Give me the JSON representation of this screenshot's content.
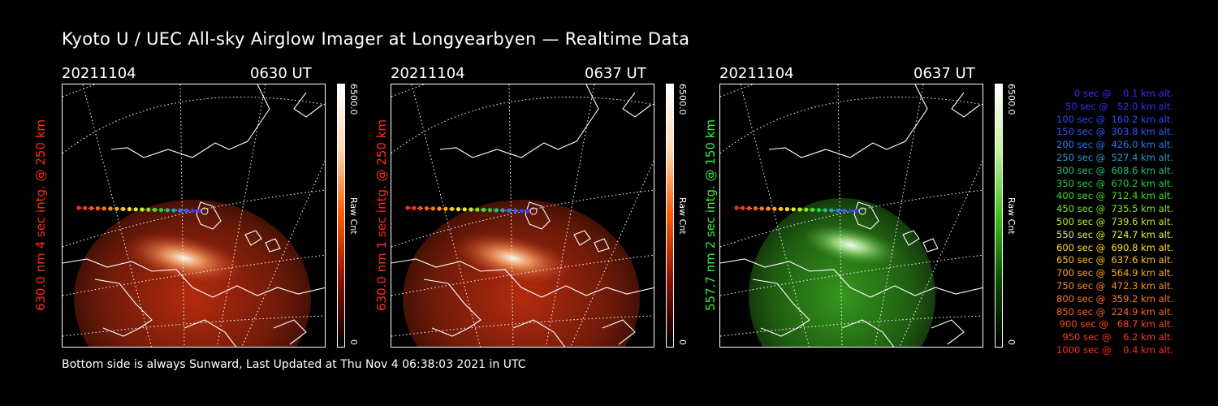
{
  "title": "Kyoto U / UEC All-sky Airglow Imager at Longyearbyen — Realtime Data",
  "footer": "Bottom side is always Sunward, Last Updated at Thu Nov  4 06:38:03 2021 in UTC",
  "colors": {
    "red_label": "#ff2a1a",
    "green_label": "#33ee33",
    "red_glow": "#c83010",
    "green_glow": "#3aa820"
  },
  "panels": [
    {
      "date": "20211104",
      "time": "0630 UT",
      "ylabel": "630.0 nm 4 sec intg. @ 250 km",
      "cbar_max": "6500.0",
      "cbar_unit": "Raw Cnt",
      "cbar_min": "0",
      "color": "red"
    },
    {
      "date": "20211104",
      "time": "0637 UT",
      "ylabel": "630.0 nm 1 sec intg. @ 250 km",
      "cbar_max": "6500.0",
      "cbar_unit": "Raw Cnt",
      "cbar_min": "0",
      "color": "red"
    },
    {
      "date": "20211104",
      "time": "0637 UT",
      "ylabel": "557.7 nm 2 sec intg. @ 150 km",
      "cbar_max": "6500.0",
      "cbar_unit": "Raw Cnt",
      "cbar_min": "0",
      "color": "green"
    }
  ],
  "legend": [
    {
      "text": "   0 sec @    0.1 km alt.",
      "color": "#3a2cff"
    },
    {
      "text": "  50 sec @   52.0 km alt.",
      "color": "#3a2cff"
    },
    {
      "text": " 100 sec @  160.2 km alt.",
      "color": "#2e44ff"
    },
    {
      "text": " 150 sec @  303.8 km alt.",
      "color": "#2a5cff"
    },
    {
      "text": " 200 sec @  426.0 km alt.",
      "color": "#2a78ff"
    },
    {
      "text": " 250 sec @  527.4 km alt.",
      "color": "#2a9ad0"
    },
    {
      "text": " 300 sec @  608.6 km alt.",
      "color": "#22c080"
    },
    {
      "text": " 350 sec @  670.2 km alt.",
      "color": "#22d040"
    },
    {
      "text": " 400 sec @  712.4 km alt.",
      "color": "#40dd20"
    },
    {
      "text": " 450 sec @  735.5 km alt.",
      "color": "#80e820"
    },
    {
      "text": " 500 sec @  739.6 km alt.",
      "color": "#b8f020"
    },
    {
      "text": " 550 sec @  724.7 km alt.",
      "color": "#e8f020"
    },
    {
      "text": " 600 sec @  690.8 km alt.",
      "color": "#ffe020"
    },
    {
      "text": " 650 sec @  637.6 km alt.",
      "color": "#ffc020"
    },
    {
      "text": " 700 sec @  564.9 km alt.",
      "color": "#ffa820"
    },
    {
      "text": " 750 sec @  472.3 km alt.",
      "color": "#ff9020"
    },
    {
      "text": " 800 sec @  359.2 km alt.",
      "color": "#ff7820"
    },
    {
      "text": " 850 sec @  224.9 km alt.",
      "color": "#ff6020"
    },
    {
      "text": " 900 sec @   68.7 km alt.",
      "color": "#ff4a20"
    },
    {
      "text": " 950 sec @    6.2 km alt.",
      "color": "#ff3820"
    },
    {
      "text": "1000 sec @    0.4 km alt.",
      "color": "#ff2a20"
    }
  ]
}
